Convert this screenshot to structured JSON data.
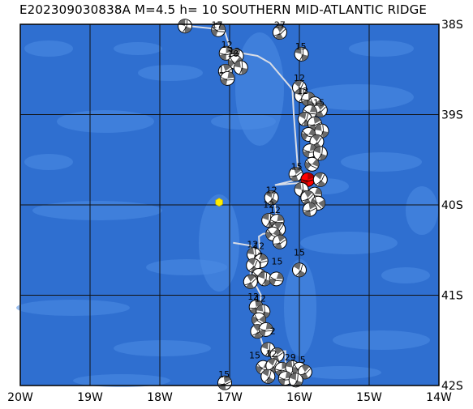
{
  "title": "E202309030838A  M=4.5 h= 10 SOUTHERN MID-ATLANTIC RIDGE",
  "colors": {
    "ocean": "#2f6fd0",
    "ocean_light": "#4d8ce4",
    "grid": "#111111",
    "ridge": "#d9dde6",
    "event": "#ffee00",
    "highlight": "#ff0000"
  },
  "longitude_labels": [
    "20W",
    "19W",
    "18W",
    "17W",
    "16W",
    "15W",
    "14W"
  ],
  "latitude_labels": [
    "38S",
    "39S",
    "40S",
    "41S",
    "42S"
  ],
  "event": {
    "lon": -17.15,
    "lat": -39.97,
    "marker": "yellow-hexagon"
  },
  "depth_labels": [
    {
      "text": "17",
      "lon": -17.18,
      "lat": -38.04
    },
    {
      "text": "27",
      "lon": -16.28,
      "lat": -38.04
    },
    {
      "text": "15",
      "lon": -15.98,
      "lat": -38.28
    },
    {
      "text": "12",
      "lon": -17.04,
      "lat": -38.26
    },
    {
      "text": "12",
      "lon": -16.93,
      "lat": -38.33
    },
    {
      "text": "10",
      "lon": -16.95,
      "lat": -38.36
    },
    {
      "text": "1",
      "lon": -17.12,
      "lat": -38.54
    },
    {
      "text": "12",
      "lon": -16.0,
      "lat": -38.63
    },
    {
      "text": "12",
      "lon": -15.95,
      "lat": -38.77
    },
    {
      "text": "15",
      "lon": -15.72,
      "lat": -38.9
    },
    {
      "text": "15",
      "lon": -16.04,
      "lat": -39.61
    },
    {
      "text": "12",
      "lon": -16.4,
      "lat": -39.87
    },
    {
      "text": "12",
      "lon": -16.44,
      "lat": -40.03
    },
    {
      "text": "12",
      "lon": -16.35,
      "lat": -40.09
    },
    {
      "text": "12",
      "lon": -16.67,
      "lat": -40.47
    },
    {
      "text": "12",
      "lon": -16.58,
      "lat": -40.49
    },
    {
      "text": "7",
      "lon": -16.56,
      "lat": -40.6
    },
    {
      "text": "15",
      "lon": -16.32,
      "lat": -40.66
    },
    {
      "text": "15",
      "lon": -16.0,
      "lat": -40.56
    },
    {
      "text": "12",
      "lon": -16.66,
      "lat": -41.05
    },
    {
      "text": "12",
      "lon": -16.56,
      "lat": -41.07
    },
    {
      "text": "2",
      "lon": -16.38,
      "lat": -41.43
    },
    {
      "text": "15",
      "lon": -16.64,
      "lat": -41.7
    },
    {
      "text": "12",
      "lon": -16.4,
      "lat": -41.68
    },
    {
      "text": "29",
      "lon": -16.13,
      "lat": -41.72
    },
    {
      "text": "5",
      "lon": -15.95,
      "lat": -41.75
    },
    {
      "text": "15",
      "lon": -17.08,
      "lat": -41.91
    }
  ],
  "mechanisms": [
    {
      "lon": -17.64,
      "lat": -38.02,
      "az": 20
    },
    {
      "lon": -17.16,
      "lat": -38.06,
      "az": 110
    },
    {
      "lon": -16.28,
      "lat": -38.09,
      "az": 60
    },
    {
      "lon": -15.97,
      "lat": -38.33,
      "az": 15
    },
    {
      "lon": -17.05,
      "lat": -38.32,
      "az": 90
    },
    {
      "lon": -16.9,
      "lat": -38.35,
      "az": 30
    },
    {
      "lon": -16.92,
      "lat": -38.42,
      "az": 130
    },
    {
      "lon": -17.06,
      "lat": -38.52,
      "az": 70
    },
    {
      "lon": -16.84,
      "lat": -38.48,
      "az": 10
    },
    {
      "lon": -17.03,
      "lat": -38.6,
      "az": 100
    },
    {
      "lon": -16.0,
      "lat": -38.7,
      "az": 40
    },
    {
      "lon": -15.97,
      "lat": -38.79,
      "az": 20
    },
    {
      "lon": -15.87,
      "lat": -38.83,
      "az": 90
    },
    {
      "lon": -15.78,
      "lat": -38.88,
      "az": 140
    },
    {
      "lon": -15.7,
      "lat": -38.95,
      "az": 60
    },
    {
      "lon": -15.85,
      "lat": -38.97,
      "az": 110
    },
    {
      "lon": -15.92,
      "lat": -39.05,
      "az": 30
    },
    {
      "lon": -15.78,
      "lat": -39.1,
      "az": 80
    },
    {
      "lon": -15.68,
      "lat": -39.18,
      "az": 10
    },
    {
      "lon": -15.87,
      "lat": -39.22,
      "az": 120
    },
    {
      "lon": -15.75,
      "lat": -39.3,
      "az": 50
    },
    {
      "lon": -15.85,
      "lat": -39.4,
      "az": 100
    },
    {
      "lon": -15.7,
      "lat": -39.43,
      "az": 20
    },
    {
      "lon": -16.05,
      "lat": -39.66,
      "az": 70
    },
    {
      "lon": -15.82,
      "lat": -39.55,
      "az": 130
    },
    {
      "lon": -15.88,
      "lat": -39.72,
      "az": 90,
      "highlight": true
    },
    {
      "lon": -15.7,
      "lat": -39.72,
      "az": 40
    },
    {
      "lon": -15.97,
      "lat": -39.83,
      "az": 10
    },
    {
      "lon": -15.78,
      "lat": -39.88,
      "az": 110
    },
    {
      "lon": -15.88,
      "lat": -39.92,
      "az": 60
    },
    {
      "lon": -15.73,
      "lat": -39.98,
      "az": 150
    },
    {
      "lon": -16.4,
      "lat": -39.92,
      "az": 30
    },
    {
      "lon": -15.85,
      "lat": -40.05,
      "az": 80
    },
    {
      "lon": -16.44,
      "lat": -40.17,
      "az": 20
    },
    {
      "lon": -16.32,
      "lat": -40.18,
      "az": 100
    },
    {
      "lon": -16.3,
      "lat": -40.27,
      "az": 50
    },
    {
      "lon": -16.38,
      "lat": -40.32,
      "az": 130
    },
    {
      "lon": -16.28,
      "lat": -40.41,
      "az": 70
    },
    {
      "lon": -16.65,
      "lat": -40.55,
      "az": 10
    },
    {
      "lon": -16.55,
      "lat": -40.62,
      "az": 90
    },
    {
      "lon": -16.66,
      "lat": -40.67,
      "az": 40
    },
    {
      "lon": -16.58,
      "lat": -40.78,
      "az": 120
    },
    {
      "lon": -16.7,
      "lat": -40.85,
      "az": 60
    },
    {
      "lon": -16.5,
      "lat": -40.82,
      "az": 20
    },
    {
      "lon": -16.33,
      "lat": -40.82,
      "az": 110
    },
    {
      "lon": -16.0,
      "lat": -40.72,
      "az": 30
    },
    {
      "lon": -16.62,
      "lat": -41.13,
      "az": 80
    },
    {
      "lon": -16.52,
      "lat": -41.18,
      "az": 10
    },
    {
      "lon": -16.58,
      "lat": -41.27,
      "az": 140
    },
    {
      "lon": -16.6,
      "lat": -41.4,
      "az": 50
    },
    {
      "lon": -16.48,
      "lat": -41.38,
      "az": 100
    },
    {
      "lon": -16.45,
      "lat": -41.6,
      "az": 20
    },
    {
      "lon": -16.32,
      "lat": -41.66,
      "az": 70
    },
    {
      "lon": -16.52,
      "lat": -41.8,
      "az": 120
    },
    {
      "lon": -16.38,
      "lat": -41.78,
      "az": 40
    },
    {
      "lon": -16.25,
      "lat": -41.82,
      "az": 90
    },
    {
      "lon": -16.1,
      "lat": -41.8,
      "az": 10
    },
    {
      "lon": -16.0,
      "lat": -41.82,
      "az": 130
    },
    {
      "lon": -15.92,
      "lat": -41.85,
      "az": 60
    },
    {
      "lon": -16.45,
      "lat": -41.9,
      "az": 30
    },
    {
      "lon": -16.2,
      "lat": -41.92,
      "az": 100
    },
    {
      "lon": -16.05,
      "lat": -41.94,
      "az": 20
    },
    {
      "lon": -17.07,
      "lat": -41.97,
      "az": 80
    }
  ],
  "ridge_segments": [
    [
      [
        -17.58,
        -38.02
      ],
      [
        -17.08,
        -38.06
      ],
      [
        -17.06,
        -38.1
      ],
      [
        -16.98,
        -38.3
      ],
      [
        -16.6,
        -38.35
      ],
      [
        -16.42,
        -38.43
      ],
      [
        -16.1,
        -38.72
      ],
      [
        -16.08,
        -39.0
      ],
      [
        -16.02,
        -39.62
      ],
      [
        -16.08,
        -39.73
      ],
      [
        -16.35,
        -39.78
      ],
      [
        -15.88,
        -39.75
      ]
    ],
    [
      [
        -16.35,
        -40.0
      ],
      [
        -16.3,
        -40.3
      ],
      [
        -16.52,
        -40.32
      ],
      [
        -16.58,
        -40.35
      ],
      [
        -16.57,
        -40.5
      ]
    ],
    [
      [
        -16.95,
        -40.42
      ],
      [
        -16.7,
        -40.45
      ],
      [
        -16.7,
        -40.78
      ],
      [
        -16.55,
        -41.0
      ],
      [
        -16.6,
        -41.35
      ],
      [
        -16.5,
        -41.62
      ],
      [
        -16.2,
        -41.62
      ],
      [
        -16.2,
        -41.85
      ]
    ]
  ]
}
